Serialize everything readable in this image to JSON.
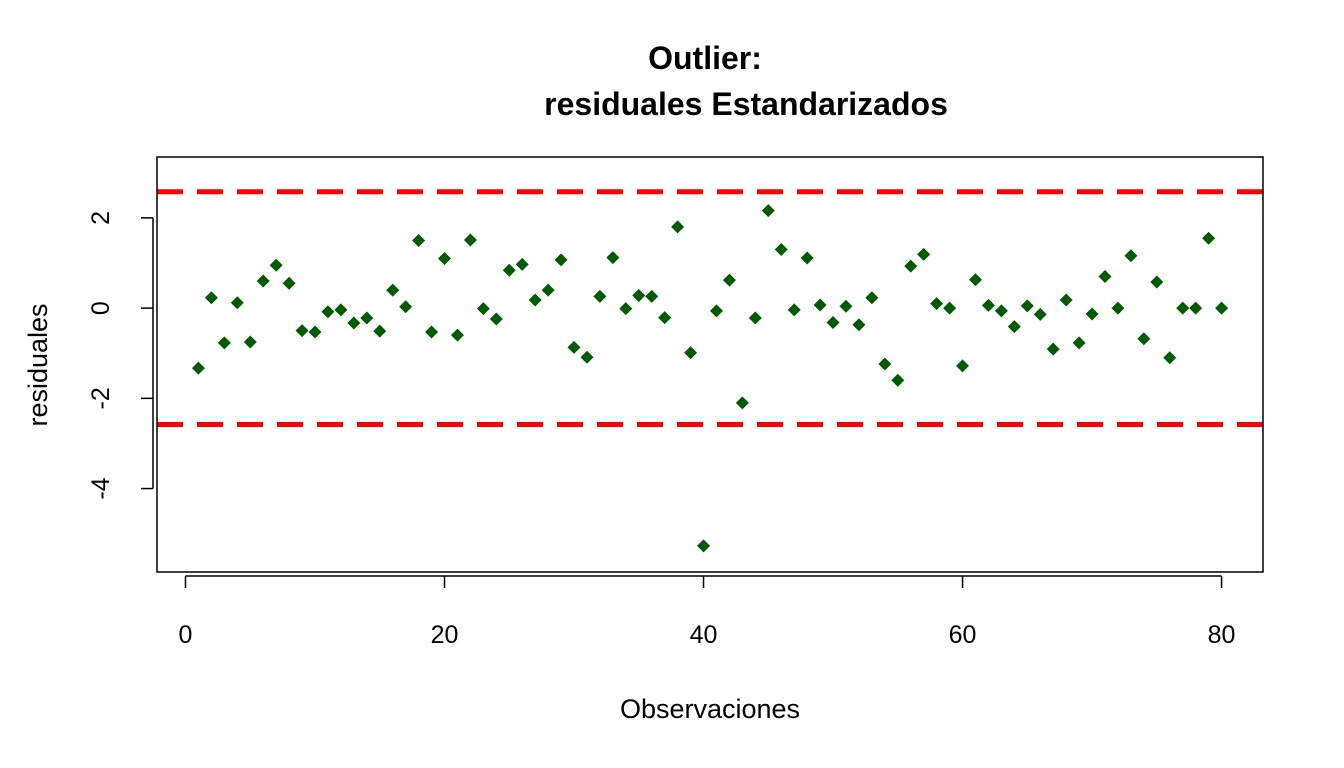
{
  "chart_data": {
    "type": "scatter",
    "title_lines": [
      "Outlier:",
      "residuales Estandarizados"
    ],
    "xlabel": "Observaciones",
    "ylabel": "residuales",
    "xlim": [
      -2.2,
      83.2
    ],
    "ylim": [
      -5.85,
      3.35
    ],
    "x_ticks": [
      0,
      20,
      40,
      60,
      80
    ],
    "y_ticks": [
      -4,
      -2,
      0,
      2
    ],
    "grid": false,
    "legend": "none",
    "point_color": "#005a00",
    "reference_line_color": "#ff0000",
    "reference_lines": [
      2.58,
      -2.58
    ],
    "series": [
      {
        "x": [
          1,
          2,
          3,
          4,
          5,
          6,
          7,
          8,
          9,
          10,
          11,
          12,
          13,
          14,
          15,
          16,
          17,
          18,
          19,
          20,
          21,
          22,
          23,
          24,
          25,
          26,
          27,
          28,
          29,
          30,
          31,
          32,
          33,
          34,
          35,
          36,
          37,
          38,
          39,
          40,
          41,
          42,
          43,
          44,
          45,
          46,
          47,
          48,
          49,
          50,
          51,
          52,
          53,
          54,
          55,
          56,
          57,
          58,
          59,
          60,
          61,
          62,
          63,
          64,
          65,
          66,
          67,
          68,
          69,
          70,
          71,
          72,
          73,
          74,
          75,
          76,
          77,
          78,
          79,
          80
        ],
        "values": [
          -1.33,
          0.23,
          -0.77,
          0.12,
          -0.75,
          0.6,
          0.95,
          0.55,
          -0.5,
          -0.53,
          -0.08,
          -0.04,
          -0.33,
          -0.22,
          -0.51,
          0.4,
          0.03,
          1.5,
          -0.53,
          1.1,
          -0.6,
          1.51,
          -0.01,
          -0.24,
          0.84,
          0.97,
          0.18,
          0.4,
          1.07,
          -0.87,
          -1.09,
          0.26,
          1.12,
          -0.01,
          0.28,
          0.26,
          -0.21,
          1.8,
          -0.99,
          -5.27,
          -0.06,
          0.62,
          -2.1,
          -0.22,
          2.16,
          1.3,
          -0.04,
          1.11,
          0.07,
          -0.32,
          0.04,
          -0.37,
          0.23,
          -1.24,
          -1.6,
          0.93,
          1.19,
          0.1,
          0.0,
          -1.28,
          0.63,
          0.06,
          -0.06,
          -0.41,
          0.05,
          -0.14,
          -0.91,
          0.18,
          -0.77,
          -0.13,
          0.7,
          0.0,
          1.16,
          -0.68,
          0.58,
          -1.1,
          0.0,
          0.0,
          1.55,
          0.0
        ]
      }
    ]
  }
}
